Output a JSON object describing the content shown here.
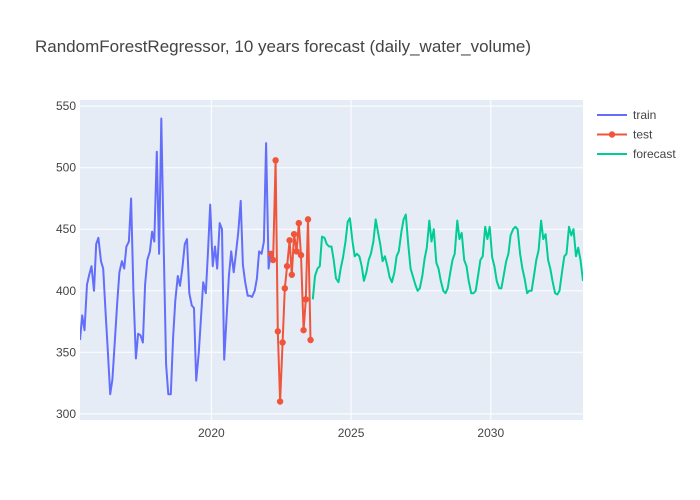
{
  "chart_data": {
    "type": "line",
    "title": "RandomForestRegressor, 10 years forecast (daily_water_volume)",
    "xlabel": "",
    "ylabel": "",
    "xlim": [
      2015.3,
      2033.3
    ],
    "ylim": [
      295,
      555
    ],
    "x_ticks": [
      2020,
      2025,
      2030
    ],
    "y_ticks": [
      300,
      350,
      400,
      450,
      500,
      550
    ],
    "grid": true,
    "legend_position": "top-right",
    "colors": {
      "plot_background": "#e5ecf6",
      "grid": "#ffffff",
      "text": "#444444",
      "train": "#636efa",
      "test": "#ef553b",
      "forecast": "#00cc96"
    },
    "series": [
      {
        "name": "train",
        "mode": "lines",
        "points": [
          [
            2015.3,
            360
          ],
          [
            2015.38,
            380
          ],
          [
            2015.46,
            368
          ],
          [
            2015.55,
            405
          ],
          [
            2015.63,
            413
          ],
          [
            2015.71,
            420
          ],
          [
            2015.8,
            400
          ],
          [
            2015.88,
            438
          ],
          [
            2015.96,
            443
          ],
          [
            2016.05,
            424
          ],
          [
            2016.13,
            418
          ],
          [
            2016.21,
            385
          ],
          [
            2016.3,
            350
          ],
          [
            2016.38,
            316
          ],
          [
            2016.46,
            328
          ],
          [
            2016.55,
            360
          ],
          [
            2016.63,
            390
          ],
          [
            2016.71,
            415
          ],
          [
            2016.8,
            424
          ],
          [
            2016.88,
            418
          ],
          [
            2016.96,
            436
          ],
          [
            2017.05,
            440
          ],
          [
            2017.13,
            475
          ],
          [
            2017.21,
            400
          ],
          [
            2017.3,
            345
          ],
          [
            2017.38,
            365
          ],
          [
            2017.46,
            364
          ],
          [
            2017.55,
            358
          ],
          [
            2017.63,
            405
          ],
          [
            2017.71,
            425
          ],
          [
            2017.8,
            432
          ],
          [
            2017.88,
            448
          ],
          [
            2017.96,
            440
          ],
          [
            2018.05,
            513
          ],
          [
            2018.13,
            430
          ],
          [
            2018.21,
            540
          ],
          [
            2018.3,
            432
          ],
          [
            2018.38,
            340
          ],
          [
            2018.46,
            316
          ],
          [
            2018.55,
            316
          ],
          [
            2018.63,
            362
          ],
          [
            2018.71,
            392
          ],
          [
            2018.8,
            412
          ],
          [
            2018.88,
            404
          ],
          [
            2018.96,
            418
          ],
          [
            2019.05,
            438
          ],
          [
            2019.13,
            442
          ],
          [
            2019.21,
            398
          ],
          [
            2019.3,
            388
          ],
          [
            2019.38,
            386
          ],
          [
            2019.46,
            327
          ],
          [
            2019.55,
            350
          ],
          [
            2019.63,
            378
          ],
          [
            2019.71,
            407
          ],
          [
            2019.8,
            398
          ],
          [
            2019.88,
            432
          ],
          [
            2019.96,
            470
          ],
          [
            2020.05,
            420
          ],
          [
            2020.13,
            436
          ],
          [
            2020.21,
            418
          ],
          [
            2020.3,
            455
          ],
          [
            2020.38,
            450
          ],
          [
            2020.46,
            344
          ],
          [
            2020.55,
            380
          ],
          [
            2020.63,
            412
          ],
          [
            2020.71,
            432
          ],
          [
            2020.8,
            415
          ],
          [
            2020.88,
            430
          ],
          [
            2020.96,
            447
          ],
          [
            2021.05,
            473
          ],
          [
            2021.13,
            421
          ],
          [
            2021.21,
            407
          ],
          [
            2021.3,
            396
          ],
          [
            2021.38,
            396
          ],
          [
            2021.46,
            395
          ],
          [
            2021.55,
            400
          ],
          [
            2021.63,
            410
          ],
          [
            2021.71,
            432
          ],
          [
            2021.8,
            430
          ],
          [
            2021.88,
            440
          ],
          [
            2021.96,
            520
          ],
          [
            2022.05,
            418
          ],
          [
            2022.13,
            432
          ]
        ]
      },
      {
        "name": "test",
        "mode": "lines+markers",
        "points": [
          [
            2022.13,
            430
          ],
          [
            2022.21,
            425
          ],
          [
            2022.3,
            506
          ],
          [
            2022.38,
            367
          ],
          [
            2022.46,
            310
          ],
          [
            2022.55,
            358
          ],
          [
            2022.63,
            402
          ],
          [
            2022.71,
            420
          ],
          [
            2022.8,
            441
          ],
          [
            2022.88,
            413
          ],
          [
            2022.96,
            446
          ],
          [
            2023.05,
            432
          ],
          [
            2023.13,
            455
          ],
          [
            2023.21,
            429
          ],
          [
            2023.3,
            368
          ],
          [
            2023.38,
            393
          ],
          [
            2023.46,
            458
          ],
          [
            2023.55,
            360
          ]
        ]
      },
      {
        "name": "forecast",
        "mode": "lines",
        "points": [
          [
            2023.63,
            393
          ],
          [
            2023.71,
            412
          ],
          [
            2023.8,
            418
          ],
          [
            2023.88,
            420
          ],
          [
            2023.96,
            444
          ],
          [
            2024.05,
            443
          ],
          [
            2024.13,
            438
          ],
          [
            2024.21,
            436
          ],
          [
            2024.3,
            436
          ],
          [
            2024.38,
            425
          ],
          [
            2024.46,
            410
          ],
          [
            2024.55,
            407
          ],
          [
            2024.63,
            418
          ],
          [
            2024.71,
            427
          ],
          [
            2024.8,
            440
          ],
          [
            2024.88,
            456
          ],
          [
            2024.96,
            459
          ],
          [
            2025.05,
            440
          ],
          [
            2025.13,
            428
          ],
          [
            2025.21,
            430
          ],
          [
            2025.3,
            428
          ],
          [
            2025.38,
            420
          ],
          [
            2025.46,
            408
          ],
          [
            2025.55,
            415
          ],
          [
            2025.63,
            425
          ],
          [
            2025.71,
            430
          ],
          [
            2025.8,
            440
          ],
          [
            2025.88,
            458
          ],
          [
            2025.96,
            448
          ],
          [
            2026.05,
            437
          ],
          [
            2026.13,
            424
          ],
          [
            2026.21,
            428
          ],
          [
            2026.3,
            420
          ],
          [
            2026.38,
            411
          ],
          [
            2026.46,
            407
          ],
          [
            2026.55,
            415
          ],
          [
            2026.63,
            428
          ],
          [
            2026.71,
            432
          ],
          [
            2026.8,
            448
          ],
          [
            2026.88,
            458
          ],
          [
            2026.96,
            462
          ],
          [
            2027.05,
            437
          ],
          [
            2027.13,
            418
          ],
          [
            2027.21,
            412
          ],
          [
            2027.3,
            405
          ],
          [
            2027.38,
            400
          ],
          [
            2027.46,
            402
          ],
          [
            2027.55,
            412
          ],
          [
            2027.63,
            426
          ],
          [
            2027.71,
            435
          ],
          [
            2027.8,
            457
          ],
          [
            2027.88,
            440
          ],
          [
            2027.96,
            450
          ],
          [
            2028.05,
            423
          ],
          [
            2028.13,
            418
          ],
          [
            2028.21,
            408
          ],
          [
            2028.3,
            400
          ],
          [
            2028.38,
            398
          ],
          [
            2028.46,
            402
          ],
          [
            2028.55,
            415
          ],
          [
            2028.63,
            425
          ],
          [
            2028.71,
            430
          ],
          [
            2028.8,
            457
          ],
          [
            2028.88,
            442
          ],
          [
            2028.96,
            447
          ],
          [
            2029.05,
            425
          ],
          [
            2029.13,
            420
          ],
          [
            2029.21,
            408
          ],
          [
            2029.3,
            398
          ],
          [
            2029.38,
            398
          ],
          [
            2029.46,
            400
          ],
          [
            2029.55,
            413
          ],
          [
            2029.63,
            425
          ],
          [
            2029.71,
            428
          ],
          [
            2029.8,
            452
          ],
          [
            2029.88,
            442
          ],
          [
            2029.96,
            452
          ],
          [
            2030.05,
            427
          ],
          [
            2030.13,
            420
          ],
          [
            2030.21,
            408
          ],
          [
            2030.3,
            402
          ],
          [
            2030.38,
            402
          ],
          [
            2030.46,
            412
          ],
          [
            2030.55,
            424
          ],
          [
            2030.63,
            430
          ],
          [
            2030.71,
            445
          ],
          [
            2030.8,
            450
          ],
          [
            2030.88,
            452
          ],
          [
            2030.96,
            450
          ],
          [
            2031.05,
            430
          ],
          [
            2031.13,
            418
          ],
          [
            2031.21,
            410
          ],
          [
            2031.3,
            398
          ],
          [
            2031.38,
            400
          ],
          [
            2031.46,
            400
          ],
          [
            2031.55,
            413
          ],
          [
            2031.63,
            425
          ],
          [
            2031.71,
            433
          ],
          [
            2031.8,
            457
          ],
          [
            2031.88,
            442
          ],
          [
            2031.96,
            446
          ],
          [
            2032.05,
            425
          ],
          [
            2032.13,
            418
          ],
          [
            2032.21,
            408
          ],
          [
            2032.3,
            398
          ],
          [
            2032.38,
            397
          ],
          [
            2032.46,
            400
          ],
          [
            2032.55,
            415
          ],
          [
            2032.63,
            428
          ],
          [
            2032.71,
            430
          ],
          [
            2032.8,
            452
          ],
          [
            2032.88,
            445
          ],
          [
            2032.96,
            450
          ],
          [
            2033.05,
            428
          ],
          [
            2033.13,
            435
          ],
          [
            2033.21,
            425
          ],
          [
            2033.3,
            408
          ]
        ]
      }
    ]
  }
}
